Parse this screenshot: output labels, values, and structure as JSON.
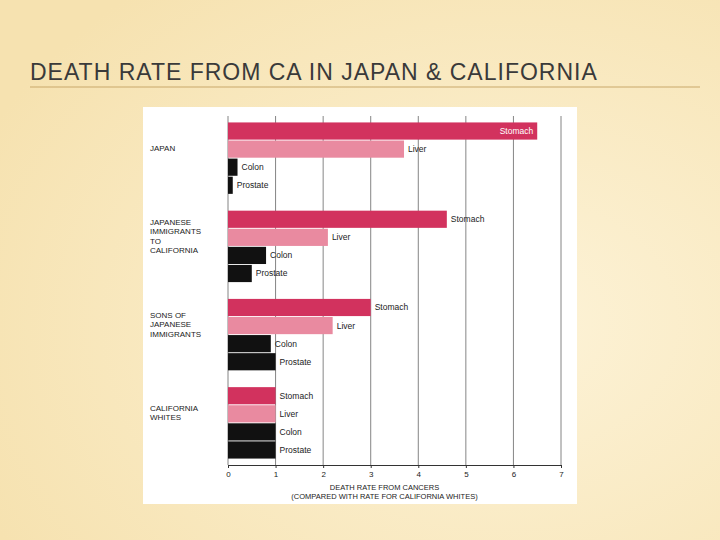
{
  "chart_data": {
    "type": "bar",
    "orientation": "horizontal",
    "title": "DEATH RATE FROM CA IN JAPAN & CALIFORNIA",
    "xlabel": "DEATH RATE FROM CANCERS (COMPARED WITH RATE FOR CALIFORNIA WHITES)",
    "categories": [
      "JAPAN",
      "JAPANESE IMMIGRANTS TO CALIFORNIA",
      "SONS OF JAPANESE IMMIGRANTS",
      "CALIFORNIA WHITES"
    ],
    "series": [
      {
        "name": "Stomach",
        "color": "#d2325e",
        "values": [
          6.5,
          4.6,
          3.0,
          1.0
        ]
      },
      {
        "name": "Liver",
        "color": "#e98aa0",
        "values": [
          3.7,
          2.1,
          2.2,
          1.0
        ]
      },
      {
        "name": "Colon",
        "color": "#111111",
        "values": [
          0.2,
          0.8,
          0.9,
          1.0
        ]
      },
      {
        "name": "Prostate",
        "color": "#111111",
        "values": [
          0.1,
          0.5,
          1.0,
          1.0
        ]
      }
    ],
    "xlim": [
      0,
      7
    ],
    "xticks": [
      0,
      1,
      2,
      3,
      4,
      5,
      6,
      7
    ],
    "grid": true
  }
}
